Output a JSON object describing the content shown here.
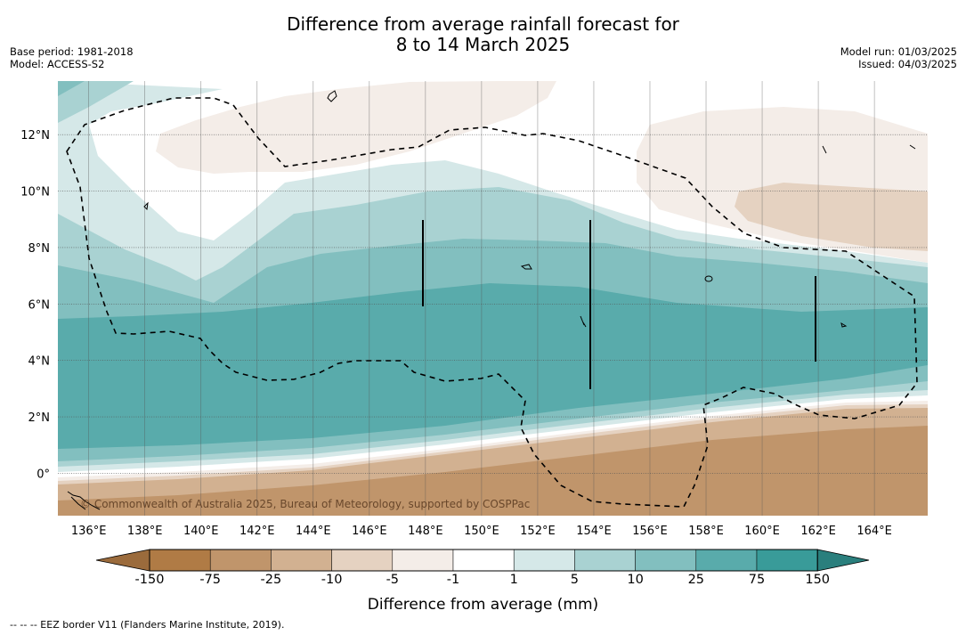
{
  "title": {
    "line1": "Difference from average rainfall forecast for",
    "line2": "8 to 14 March 2025"
  },
  "meta_left": {
    "base_period": "Base period: 1981-2018",
    "model": "Model: ACCESS-S2"
  },
  "meta_right": {
    "model_run": "Model run: 01/03/2025",
    "issued": "Issued: 04/03/2025"
  },
  "map": {
    "lat_labels": [
      "12°N",
      "10°N",
      "8°N",
      "6°N",
      "4°N",
      "2°N",
      "0°"
    ],
    "lon_labels": [
      "136°E",
      "138°E",
      "140°E",
      "142°E",
      "144°E",
      "146°E",
      "148°E",
      "150°E",
      "152°E",
      "154°E",
      "156°E",
      "158°E",
      "160°E",
      "162°E",
      "164°E"
    ],
    "copyright": "© Commonwealth of Australia 2025, Bureau of Meteorology, supported by COSPPac",
    "lat_range": [
      -1.5,
      13.9
    ],
    "lon_range": [
      134.9,
      165.9
    ]
  },
  "colorbar": {
    "labels": [
      "-150",
      "-75",
      "-25",
      "-10",
      "-5",
      "-1",
      "1",
      "5",
      "10",
      "25",
      "75",
      "150"
    ],
    "colors": [
      "#9b6b3c",
      "#b07b45",
      "#c0956b",
      "#d2b191",
      "#e5d2c1",
      "#f4ede8",
      "#ffffff",
      "#d5e8e8",
      "#a9d2d2",
      "#82bfbf",
      "#59abab",
      "#399b99",
      "#2a7f7d"
    ],
    "title": "Difference from average (mm)"
  },
  "footnote": "--  --  -- EEZ border V11 (Flanders Marine Institute, 2019)."
}
